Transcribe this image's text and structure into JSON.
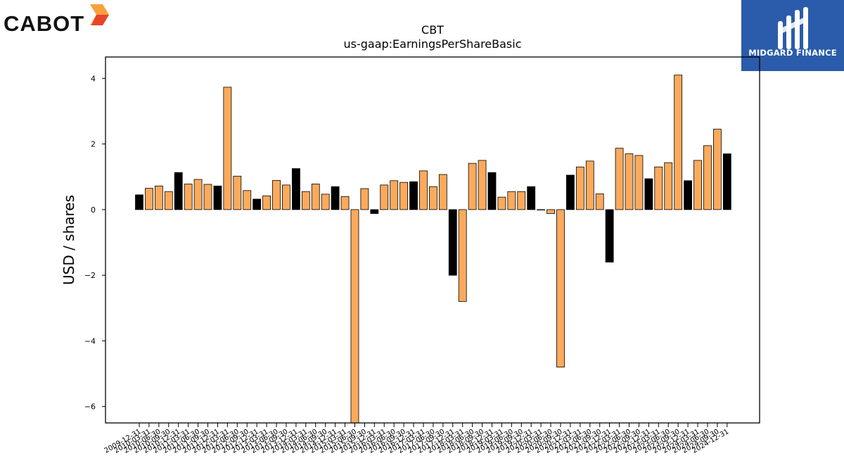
{
  "logos": {
    "left": {
      "text": "CABOT",
      "mark_colors": [
        "#f7a139",
        "#e8452a"
      ]
    },
    "right": {
      "text": "MIDGARD FINANCE",
      "background": "#2a5cab"
    }
  },
  "chart_data": {
    "type": "bar",
    "title": "CBT",
    "subtitle": "us-gaap:EarningsPerShareBasic",
    "xlabel": "",
    "ylabel": "USD / shares",
    "ylim": [
      -6.5,
      4.65
    ],
    "yticks": [
      4,
      2,
      0,
      -2,
      -4,
      -6
    ],
    "ytick_labels": [
      "4",
      "2",
      "0",
      "−2",
      "−4",
      "−6"
    ],
    "grid": false,
    "legend": "none",
    "colors": {
      "quarter": "#fbaa5c",
      "annual": "#000000",
      "edge": "#000000"
    },
    "x_tick_labels": [
      "2009-12-31",
      "2010-03-31",
      "2010-06-30",
      "2010-09-30",
      "2010-12-31",
      "2011-03-31",
      "2011-06-30",
      "2011-09-30",
      "2011-12-31",
      "2012-03-31",
      "2012-06-30",
      "2012-09-30",
      "2012-12-31",
      "2013-03-31",
      "2013-06-30",
      "2013-09-30",
      "2013-12-31",
      "2014-03-31",
      "2014-06-30",
      "2014-09-30",
      "2014-12-31",
      "2015-03-31",
      "2015-06-30",
      "2015-09-30",
      "2015-12-31",
      "2016-03-31",
      "2016-06-30",
      "2016-09-30",
      "2016-12-31",
      "2017-03-31",
      "2017-06-30",
      "2017-09-30",
      "2017-12-31",
      "2018-03-31",
      "2018-06-30",
      "2018-09-30",
      "2018-12-31",
      "2019-03-31",
      "2019-06-30",
      "2019-09-30",
      "2019-12-31",
      "2020-03-31",
      "2020-06-30",
      "2020-09-30",
      "2020-12-31",
      "2021-03-31",
      "2021-06-30",
      "2021-09-30",
      "2021-12-31",
      "2022-03-31",
      "2022-06-30",
      "2022-09-30",
      "2022-12-31",
      "2023-03-31",
      "2023-06-30",
      "2023-09-30",
      "2023-12-31",
      "2024-03-31",
      "2024-06-30",
      "2024-09-30",
      "2024-12-31"
    ],
    "values": [
      0.45,
      0.65,
      0.72,
      0.55,
      1.13,
      0.78,
      0.92,
      0.77,
      0.72,
      3.73,
      1.02,
      0.58,
      0.32,
      0.42,
      0.89,
      0.75,
      1.25,
      0.55,
      0.78,
      0.47,
      0.7,
      0.4,
      -6.5,
      0.64,
      -0.12,
      0.75,
      0.88,
      0.83,
      0.85,
      1.18,
      0.7,
      1.07,
      -2.0,
      -2.8,
      1.41,
      1.5,
      1.13,
      0.38,
      0.55,
      0.55,
      0.7,
      0.0,
      -0.12,
      -4.8,
      1.05,
      1.3,
      1.48,
      0.48,
      -1.6,
      1.87,
      1.7,
      1.65,
      0.94,
      1.3,
      1.43,
      4.1,
      0.88,
      1.5,
      1.95,
      2.45,
      1.7
    ],
    "bar_kind": [
      "A",
      "Q",
      "Q",
      "Q",
      "A",
      "Q",
      "Q",
      "Q",
      "A",
      "Q",
      "Q",
      "Q",
      "A",
      "Q",
      "Q",
      "Q",
      "A",
      "Q",
      "Q",
      "Q",
      "A",
      "Q",
      "Q",
      "Q",
      "A",
      "Q",
      "Q",
      "Q",
      "A",
      "Q",
      "Q",
      "Q",
      "A",
      "Q",
      "Q",
      "Q",
      "A",
      "Q",
      "Q",
      "Q",
      "A",
      "Q",
      "Q",
      "Q",
      "A",
      "Q",
      "Q",
      "Q",
      "A",
      "Q",
      "Q",
      "Q",
      "A",
      "Q",
      "Q",
      "Q",
      "A",
      "Q",
      "Q",
      "Q",
      "A"
    ]
  }
}
